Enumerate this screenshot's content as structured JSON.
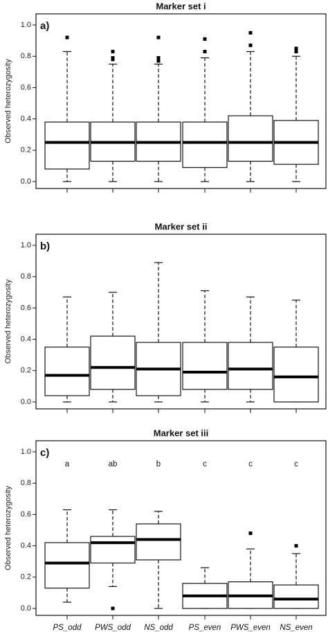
{
  "chart_data": [
    {
      "type": "boxplot",
      "title": "Marker set i",
      "panel_label": "a)",
      "ylabel": "Observed heterozygosity",
      "ylim": [
        0,
        1.0
      ],
      "yticks": [
        "0.0",
        "0.2",
        "0.4",
        "0.6",
        "0.8",
        "1.0"
      ],
      "categories": [
        "PS_odd",
        "PWS_odd",
        "NS_odd",
        "PS_even",
        "PWS_even",
        "NS_even"
      ],
      "show_category_labels": false,
      "boxes": [
        {
          "whisker_low": 0.0,
          "q1": 0.08,
          "median": 0.25,
          "q3": 0.38,
          "whisker_high": 0.83,
          "outliers": [
            0.92
          ]
        },
        {
          "whisker_low": 0.0,
          "q1": 0.13,
          "median": 0.25,
          "q3": 0.38,
          "whisker_high": 0.75,
          "outliers": [
            0.78,
            0.79,
            0.83
          ]
        },
        {
          "whisker_low": 0.0,
          "q1": 0.13,
          "median": 0.25,
          "q3": 0.38,
          "whisker_high": 0.75,
          "outliers": [
            0.77,
            0.79,
            0.92
          ]
        },
        {
          "whisker_low": 0.0,
          "q1": 0.09,
          "median": 0.25,
          "q3": 0.38,
          "whisker_high": 0.79,
          "outliers": [
            0.83,
            0.91
          ]
        },
        {
          "whisker_low": 0.0,
          "q1": 0.13,
          "median": 0.25,
          "q3": 0.42,
          "whisker_high": 0.83,
          "outliers": [
            0.87,
            0.95
          ]
        },
        {
          "whisker_low": 0.0,
          "q1": 0.11,
          "median": 0.25,
          "q3": 0.39,
          "whisker_high": 0.8,
          "outliers": [
            0.83,
            0.85
          ]
        }
      ],
      "significance_letters": []
    },
    {
      "type": "boxplot",
      "title": "Marker set ii",
      "panel_label": "b)",
      "ylabel": "Observed heterozygosity",
      "ylim": [
        0,
        1.0
      ],
      "yticks": [
        "0.0",
        "0.2",
        "0.4",
        "0.6",
        "0.8",
        "1.0"
      ],
      "categories": [
        "PS_odd",
        "PWS_odd",
        "NS_odd",
        "PS_even",
        "PWS_even",
        "NS_even"
      ],
      "show_category_labels": false,
      "boxes": [
        {
          "whisker_low": 0.0,
          "q1": 0.04,
          "median": 0.17,
          "q3": 0.35,
          "whisker_high": 0.67,
          "outliers": []
        },
        {
          "whisker_low": 0.0,
          "q1": 0.08,
          "median": 0.22,
          "q3": 0.42,
          "whisker_high": 0.7,
          "outliers": []
        },
        {
          "whisker_low": 0.0,
          "q1": 0.04,
          "median": 0.21,
          "q3": 0.38,
          "whisker_high": 0.89,
          "outliers": []
        },
        {
          "whisker_low": 0.0,
          "q1": 0.08,
          "median": 0.19,
          "q3": 0.38,
          "whisker_high": 0.71,
          "outliers": []
        },
        {
          "whisker_low": 0.0,
          "q1": 0.08,
          "median": 0.21,
          "q3": 0.38,
          "whisker_high": 0.67,
          "outliers": []
        },
        {
          "whisker_low": 0.0,
          "q1": 0.0,
          "median": 0.16,
          "q3": 0.35,
          "whisker_high": 0.65,
          "outliers": []
        }
      ],
      "significance_letters": []
    },
    {
      "type": "boxplot",
      "title": "Marker set iii",
      "panel_label": "c)",
      "ylabel": "Observed heterozygosity",
      "ylim": [
        0,
        1.0
      ],
      "yticks": [
        "0.0",
        "0.2",
        "0.4",
        "0.6",
        "0.8",
        "1.0"
      ],
      "categories": [
        "PS_odd",
        "PWS_odd",
        "NS_odd",
        "PS_even",
        "PWS_even",
        "NS_even"
      ],
      "show_category_labels": true,
      "boxes": [
        {
          "whisker_low": 0.04,
          "q1": 0.13,
          "median": 0.29,
          "q3": 0.42,
          "whisker_high": 0.63,
          "outliers": []
        },
        {
          "whisker_low": 0.14,
          "q1": 0.29,
          "median": 0.42,
          "q3": 0.46,
          "whisker_high": 0.63,
          "outliers": [
            0.0
          ]
        },
        {
          "whisker_low": 0.0,
          "q1": 0.31,
          "median": 0.44,
          "q3": 0.54,
          "whisker_high": 0.62,
          "outliers": []
        },
        {
          "whisker_low": 0.0,
          "q1": 0.0,
          "median": 0.08,
          "q3": 0.16,
          "whisker_high": 0.26,
          "outliers": []
        },
        {
          "whisker_low": 0.0,
          "q1": 0.0,
          "median": 0.08,
          "q3": 0.17,
          "whisker_high": 0.38,
          "outliers": [
            0.48
          ]
        },
        {
          "whisker_low": 0.0,
          "q1": 0.0,
          "median": 0.06,
          "q3": 0.15,
          "whisker_high": 0.35,
          "outliers": [
            0.4
          ]
        }
      ],
      "significance_letters": [
        "a",
        "ab",
        "b",
        "c",
        "c",
        "c"
      ]
    }
  ]
}
